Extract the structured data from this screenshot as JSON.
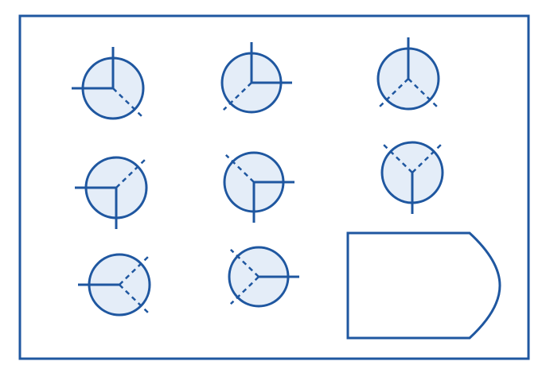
{
  "colors": {
    "stroke": "#1f57a0",
    "circle_fill": "#e4edf8",
    "background": "#ffffff"
  },
  "figures": [
    {
      "solid": [
        "up",
        "left"
      ],
      "dashed": [
        "down-right"
      ]
    },
    {
      "solid": [
        "up",
        "right"
      ],
      "dashed": [
        "down-left"
      ]
    },
    {
      "solid": [
        "up"
      ],
      "dashed": [
        "down-left",
        "down-right"
      ]
    },
    {
      "solid": [
        "left",
        "down"
      ],
      "dashed": [
        "up-right"
      ]
    },
    {
      "solid": [
        "right",
        "down"
      ],
      "dashed": [
        "up-left"
      ]
    },
    {
      "solid": [
        "down"
      ],
      "dashed": [
        "up-left",
        "up-right"
      ]
    },
    {
      "solid": [
        "left"
      ],
      "dashed": [
        "up-right",
        "down-right"
      ]
    },
    {
      "solid": [
        "right"
      ],
      "dashed": [
        "up-left",
        "down-left"
      ]
    }
  ],
  "answer_box": {
    "shape": "rounded-right-panel",
    "content": ""
  }
}
